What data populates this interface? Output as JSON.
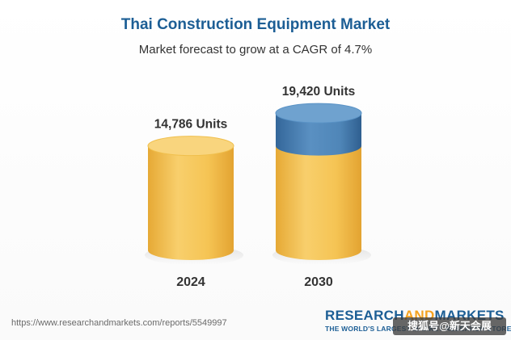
{
  "chart_data": {
    "type": "bar",
    "title": "Thai Construction Equipment Market",
    "subtitle": "Market forecast to grow at a CAGR of 4.7%",
    "categories": [
      "2024",
      "2030"
    ],
    "values": [
      14786,
      19420
    ],
    "value_labels": [
      "14,786 Units",
      "19,420 Units"
    ],
    "xlabel": "",
    "ylabel": "",
    "grid": false,
    "legend": "none",
    "colors": {
      "bar": "#f5c85a",
      "bar_shadow": "#e6a935",
      "bar_top": "#f9d57e",
      "growth": "#4f86b8",
      "growth_shadow": "#34679a",
      "growth_top": "#6fa2cf"
    }
  },
  "footer": {
    "url": "https://www.researchandmarkets.com/reports/5549997",
    "logo_part1": "RESEARCH",
    "logo_part2": "AND",
    "logo_part3": "MARKETS",
    "tagline": "THE WORLD'S LARGEST MARKET RESEARCH STORE"
  },
  "watermark": "搜狐号@新天会展"
}
